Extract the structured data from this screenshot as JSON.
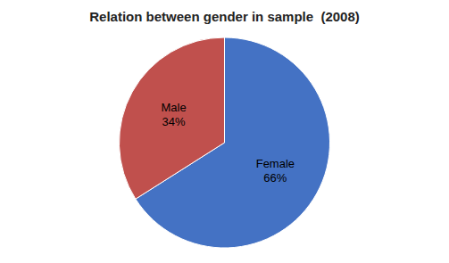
{
  "chart_data": {
    "type": "pie",
    "title": "Relation between gender in sample  (2008)",
    "categories": [
      "Female",
      "Male"
    ],
    "values": [
      66,
      34
    ],
    "value_labels": [
      "66%",
      "34%"
    ],
    "colors": [
      "#4472C4",
      "#C0504D"
    ],
    "data_labels": true
  }
}
